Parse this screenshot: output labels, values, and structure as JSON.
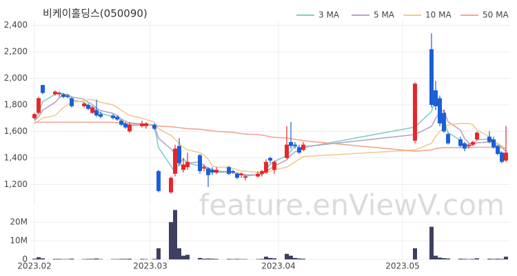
{
  "chart_data": {
    "type": "candlestick",
    "title": "비케이홀딩스(050090)",
    "watermark": "feature.enViewV.com",
    "x": [
      "2023-02-01",
      "2023-02-02",
      "2023-02-03",
      "2023-02-06",
      "2023-02-07",
      "2023-02-08",
      "2023-02-09",
      "2023-02-10",
      "2023-02-13",
      "2023-02-14",
      "2023-02-15",
      "2023-02-16",
      "2023-02-17",
      "2023-02-20",
      "2023-02-21",
      "2023-02-22",
      "2023-02-23",
      "2023-02-24",
      "2023-02-27",
      "2023-02-28",
      "2023-03-02",
      "2023-03-03",
      "2023-03-06",
      "2023-03-07",
      "2023-03-08",
      "2023-03-09",
      "2023-03-10",
      "2023-03-13",
      "2023-03-14",
      "2023-03-15",
      "2023-03-16",
      "2023-03-17",
      "2023-03-20",
      "2023-03-21",
      "2023-03-22",
      "2023-03-23",
      "2023-03-24",
      "2023-03-27",
      "2023-03-28",
      "2023-03-29",
      "2023-03-30",
      "2023-03-31",
      "2023-04-03",
      "2023-04-04",
      "2023-04-05",
      "2023-04-06",
      "2023-04-07",
      "2023-05-04",
      "2023-05-08",
      "2023-05-09",
      "2023-05-10",
      "2023-05-11",
      "2023-05-12",
      "2023-05-15",
      "2023-05-16",
      "2023-05-17",
      "2023-05-18",
      "2023-05-19",
      "2023-05-22",
      "2023-05-23",
      "2023-05-24",
      "2023-05-25",
      "2023-05-26"
    ],
    "open": [
      1700,
      1740,
      1950,
      1880,
      1880,
      1880,
      1870,
      1850,
      1790,
      1800,
      1740,
      1760,
      1730,
      1720,
      1710,
      1680,
      1660,
      1600,
      1640,
      1640,
      1650,
      1300,
      1140,
      1280,
      1490,
      1310,
      1330,
      1420,
      1320,
      1320,
      1310,
      1290,
      1330,
      1300,
      1280,
      1270,
      1250,
      1260,
      1280,
      1290,
      1400,
      1310,
      1400,
      1520,
      1500,
      1480,
      1460,
      1530,
      2220,
      1910,
      1850,
      1740,
      1580,
      1540,
      1510,
      1490,
      1500,
      1540,
      1560,
      1540,
      1490,
      1440,
      1380
    ],
    "high": [
      1740,
      1860,
      1950,
      1910,
      1900,
      1890,
      1880,
      1860,
      1820,
      1810,
      1790,
      1840,
      1750,
      1730,
      1720,
      1690,
      1670,
      1670,
      1680,
      1670,
      1660,
      1310,
      1260,
      1500,
      1550,
      1400,
      1440,
      1430,
      1350,
      1330,
      1330,
      1330,
      1340,
      1310,
      1290,
      1290,
      1270,
      1300,
      1310,
      1390,
      1410,
      1380,
      1640,
      1670,
      1520,
      1500,
      1520,
      1970,
      2340,
      1980,
      1870,
      1760,
      1590,
      1560,
      1520,
      1510,
      1530,
      1600,
      1600,
      1560,
      1500,
      1450,
      1640
    ],
    "low": [
      1690,
      1730,
      1880,
      1870,
      1860,
      1850,
      1850,
      1780,
      1780,
      1760,
      1730,
      1710,
      1700,
      1690,
      1680,
      1640,
      1620,
      1590,
      1630,
      1620,
      1610,
      1140,
      1130,
      1260,
      1340,
      1290,
      1310,
      1280,
      1300,
      1180,
      1270,
      1280,
      1270,
      1280,
      1240,
      1250,
      1230,
      1250,
      1260,
      1280,
      1360,
      1280,
      1390,
      1470,
      1470,
      1430,
      1450,
      1510,
      1780,
      1760,
      1640,
      1590,
      1500,
      1480,
      1450,
      1470,
      1490,
      1530,
      1510,
      1470,
      1420,
      1360,
      1370
    ],
    "close": [
      1730,
      1850,
      1890,
      1900,
      1890,
      1860,
      1860,
      1790,
      1810,
      1770,
      1780,
      1720,
      1710,
      1700,
      1690,
      1650,
      1630,
      1650,
      1660,
      1660,
      1620,
      1150,
      1250,
      1470,
      1360,
      1350,
      1370,
      1300,
      1330,
      1270,
      1290,
      1310,
      1280,
      1290,
      1250,
      1280,
      1260,
      1280,
      1300,
      1370,
      1380,
      1370,
      1500,
      1490,
      1490,
      1440,
      1500,
      1960,
      1800,
      1790,
      1660,
      1600,
      1510,
      1490,
      1470,
      1500,
      1520,
      1590,
      1520,
      1480,
      1430,
      1370,
      1440
    ],
    "up_color": "#e8262a",
    "down_color": "#1c5fd6",
    "moving_averages": [
      {
        "name": "3 MA",
        "color": "#7fcdc3",
        "values": [
          1690,
          1740,
          1823,
          1880,
          1893,
          1883,
          1870,
          1837,
          1820,
          1790,
          1787,
          1757,
          1737,
          1710,
          1700,
          1680,
          1657,
          1643,
          1647,
          1657,
          1647,
          1477,
          1340,
          1290,
          1360,
          1393,
          1360,
          1340,
          1333,
          1300,
          1297,
          1290,
          1293,
          1293,
          1273,
          1273,
          1263,
          1273,
          1280,
          1317,
          1350,
          1373,
          1417,
          1453,
          1493,
          1473,
          1477,
          1633,
          1750,
          1850,
          1750,
          1683,
          1590,
          1533,
          1490,
          1487,
          1497,
          1537,
          1543,
          1530,
          1477,
          1427,
          1413
        ]
      },
      {
        "name": "5 MA",
        "color": "#b5a3c4",
        "values": [
          1680,
          1710,
          1760,
          1820,
          1852,
          1878,
          1880,
          1860,
          1842,
          1818,
          1802,
          1774,
          1758,
          1736,
          1720,
          1694,
          1676,
          1664,
          1656,
          1650,
          1644,
          1548,
          1468,
          1430,
          1370,
          1316,
          1360,
          1370,
          1342,
          1324,
          1312,
          1300,
          1296,
          1288,
          1284,
          1282,
          1272,
          1272,
          1274,
          1298,
          1318,
          1340,
          1384,
          1422,
          1446,
          1458,
          1484,
          1576,
          1638,
          1698,
          1742,
          1762,
          1672,
          1610,
          1546,
          1514,
          1498,
          1514,
          1520,
          1522,
          1508,
          1478,
          1448
        ]
      },
      {
        "name": "10 MA",
        "color": "#f2c98f",
        "values": [
          1660,
          1680,
          1700,
          1720,
          1750,
          1780,
          1800,
          1820,
          1830,
          1840,
          1840,
          1830,
          1820,
          1800,
          1780,
          1760,
          1740,
          1720,
          1700,
          1690,
          1670,
          1620,
          1570,
          1540,
          1510,
          1480,
          1460,
          1440,
          1420,
          1390,
          1340,
          1330,
          1330,
          1320,
          1310,
          1300,
          1300,
          1290,
          1290,
          1290,
          1300,
          1310,
          1330,
          1350,
          1370,
          1390,
          1410,
          1460,
          1510,
          1560,
          1600,
          1630,
          1650,
          1660,
          1660,
          1660,
          1650,
          1610,
          1560,
          1530,
          1510,
          1490,
          1470
        ]
      },
      {
        "name": "50 MA",
        "color": "#f4a490",
        "values": [
          1670,
          1670,
          1670,
          1670,
          1670,
          1670,
          1670,
          1670,
          1670,
          1670,
          1670,
          1670,
          1670,
          1668,
          1666,
          1662,
          1658,
          1654,
          1650,
          1648,
          1645,
          1640,
          1635,
          1632,
          1628,
          1624,
          1620,
          1616,
          1612,
          1608,
          1604,
          1600,
          1596,
          1592,
          1588,
          1584,
          1580,
          1576,
          1572,
          1566,
          1560,
          1555,
          1550,
          1545,
          1540,
          1535,
          1530,
          1450,
          1460,
          1470,
          1475,
          1478,
          1478,
          1478,
          1478,
          1478,
          1479,
          1480,
          1480,
          1480,
          1478,
          1475,
          1472
        ]
      }
    ],
    "volume": {
      "color": "#3d4060",
      "values": [
        400000,
        1200000,
        600000,
        300000,
        300000,
        200000,
        200000,
        400000,
        200000,
        300000,
        300000,
        500000,
        200000,
        200000,
        200000,
        300000,
        300000,
        400000,
        300000,
        200000,
        300000,
        6000000,
        20000000,
        26500000,
        6000000,
        2000000,
        2500000,
        800000,
        400000,
        500000,
        400000,
        300000,
        300000,
        200000,
        300000,
        200000,
        200000,
        200000,
        300000,
        1500000,
        800000,
        600000,
        3000000,
        2000000,
        800000,
        500000,
        400000,
        6000000,
        17500000,
        2000000,
        1000000,
        700000,
        500000,
        400000,
        300000,
        200000,
        300000,
        600000,
        400000,
        300000,
        400000,
        300000,
        1500000
      ],
      "ylim": [
        0,
        27000000
      ],
      "yticks": [
        0,
        {
          "value": 10000000,
          "label": "10M"
        },
        {
          "value": 20000000,
          "label": "20M"
        }
      ]
    },
    "xlim": [
      "2023-01-31",
      "2023-05-27"
    ],
    "xticks": [
      {
        "value": "2023-02-01",
        "label": "2023.02"
      },
      {
        "value": "2023-03-01",
        "label": "2023.03"
      },
      {
        "value": "2023-04-01",
        "label": "2023.04"
      },
      {
        "value": "2023-05-01",
        "label": "2023.05"
      }
    ],
    "ylim": [
      1040,
      2435
    ],
    "yticks": [
      {
        "value": 1200,
        "label": "1,200"
      },
      {
        "value": 1400,
        "label": "1,400"
      },
      {
        "value": 1600,
        "label": "1,600"
      },
      {
        "value": 1800,
        "label": "1,800"
      },
      {
        "value": 2000,
        "label": "2,000"
      },
      {
        "value": 2200,
        "label": "2,200"
      },
      {
        "value": 2400,
        "label": "2,400"
      }
    ],
    "grid": true
  }
}
